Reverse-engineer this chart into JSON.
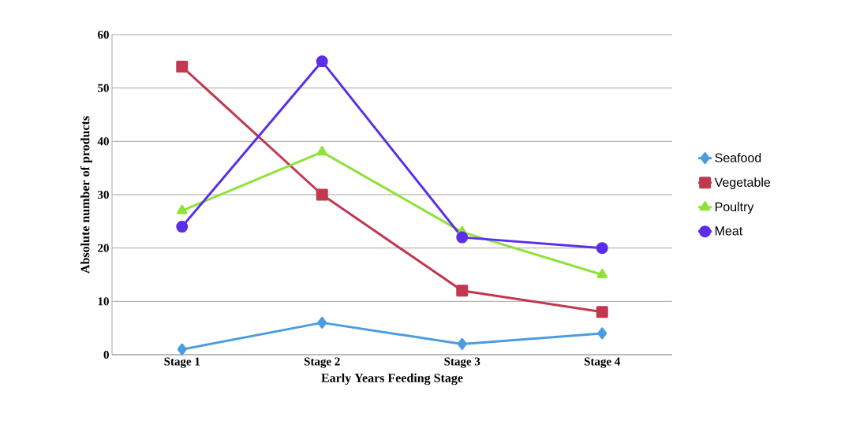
{
  "chart_data": {
    "type": "line",
    "xlabel": "Early Years Feeding Stage",
    "ylabel": "Absolute number of products",
    "categories": [
      "Stage 1",
      "Stage 2",
      "Stage 3",
      "Stage 4"
    ],
    "series": [
      {
        "name": "Seafood",
        "color": "#4a9de0",
        "marker": "diamond",
        "values": [
          1,
          6,
          2,
          4
        ]
      },
      {
        "name": "Vegetable",
        "color": "#c0394f",
        "marker": "square",
        "values": [
          54,
          30,
          12,
          8
        ]
      },
      {
        "name": "Poultry",
        "color": "#8ee23a",
        "marker": "triangle",
        "values": [
          27,
          38,
          23,
          15
        ]
      },
      {
        "name": "Meat",
        "color": "#5b2ee8",
        "marker": "circle",
        "values": [
          24,
          55,
          22,
          20
        ]
      }
    ],
    "ylim": [
      0,
      60
    ],
    "yticks": [
      0,
      10,
      20,
      30,
      40,
      50,
      60
    ],
    "grid": "y",
    "legend": "right",
    "line_style": "solid"
  }
}
